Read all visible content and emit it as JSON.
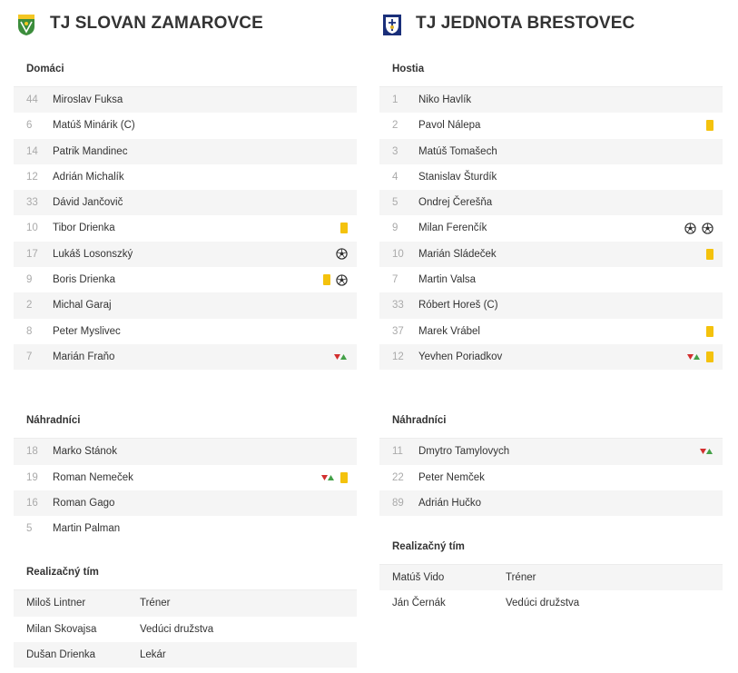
{
  "home": {
    "name": "TJ SLOVAN ZAMAROVCE",
    "crest_icon": "green-shield-crest",
    "lineup_title": "Domáci",
    "lineup": [
      {
        "num": "44",
        "name": "Miroslav Fuksa",
        "events": []
      },
      {
        "num": "6",
        "name": "Matúš Minárik (C)",
        "events": []
      },
      {
        "num": "14",
        "name": "Patrik Mandinec",
        "events": []
      },
      {
        "num": "12",
        "name": "Adrián Michalík",
        "events": []
      },
      {
        "num": "33",
        "name": "Dávid Jančovič",
        "events": []
      },
      {
        "num": "10",
        "name": "Tibor Drienka",
        "events": [
          "yellow-card"
        ]
      },
      {
        "num": "17",
        "name": "Lukáš Losonszký",
        "events": [
          "goal"
        ]
      },
      {
        "num": "9",
        "name": "Boris Drienka",
        "events": [
          "yellow-card",
          "goal"
        ]
      },
      {
        "num": "2",
        "name": "Michal Garaj",
        "events": []
      },
      {
        "num": "8",
        "name": "Peter Myslivec",
        "events": []
      },
      {
        "num": "7",
        "name": "Marián Fraňo",
        "events": [
          "substitution"
        ]
      }
    ],
    "subs_title": "Náhradníci",
    "subs": [
      {
        "num": "18",
        "name": "Marko Stánok",
        "events": []
      },
      {
        "num": "19",
        "name": "Roman Nemeček",
        "events": [
          "substitution",
          "yellow-card"
        ]
      },
      {
        "num": "16",
        "name": "Roman Gago",
        "events": []
      },
      {
        "num": "5",
        "name": "Martin Palman",
        "events": []
      }
    ],
    "staff_title": "Realizačný tím",
    "staff": [
      {
        "name": "Miloš Lintner",
        "role": "Tréner"
      },
      {
        "name": "Milan Skovajsa",
        "role": "Vedúci družstva"
      },
      {
        "name": "Dušan Drienka",
        "role": "Lekár"
      }
    ]
  },
  "away": {
    "name": "TJ JEDNOTA BRESTOVEC",
    "crest_icon": "blue-shield-crest",
    "lineup_title": "Hostia",
    "lineup": [
      {
        "num": "1",
        "name": "Niko Havlík",
        "events": []
      },
      {
        "num": "2",
        "name": "Pavol Nálepa",
        "events": [
          "yellow-card"
        ]
      },
      {
        "num": "3",
        "name": "Matúš Tomašech",
        "events": []
      },
      {
        "num": "4",
        "name": "Stanislav Šturdík",
        "events": []
      },
      {
        "num": "5",
        "name": "Ondrej Čerešňa",
        "events": []
      },
      {
        "num": "9",
        "name": "Milan Ferenčík",
        "events": [
          "goal",
          "goal"
        ]
      },
      {
        "num": "10",
        "name": "Marián Sládeček",
        "events": [
          "yellow-card"
        ]
      },
      {
        "num": "7",
        "name": "Martin Valsa",
        "events": []
      },
      {
        "num": "33",
        "name": "Róbert Horeš (C)",
        "events": []
      },
      {
        "num": "37",
        "name": "Marek Vrábel",
        "events": [
          "yellow-card"
        ]
      },
      {
        "num": "12",
        "name": "Yevhen Poriadkov",
        "events": [
          "substitution",
          "yellow-card"
        ]
      }
    ],
    "subs_title": "Náhradníci",
    "subs": [
      {
        "num": "11",
        "name": "Dmytro Tamylovych",
        "events": [
          "substitution"
        ]
      },
      {
        "num": "22",
        "name": "Peter Nemček",
        "events": []
      },
      {
        "num": "89",
        "name": "Adrián Hučko",
        "events": []
      }
    ],
    "staff_title": "Realizačný tím",
    "staff": [
      {
        "name": "Matúš Vido",
        "role": "Tréner"
      },
      {
        "name": "Ján Černák",
        "role": "Vedúci družstva"
      }
    ]
  },
  "colors": {
    "yellow_card": "#f4c20d",
    "sub_out": "#d32f2f",
    "sub_in": "#43a047",
    "row_alt": "#f5f5f5"
  }
}
